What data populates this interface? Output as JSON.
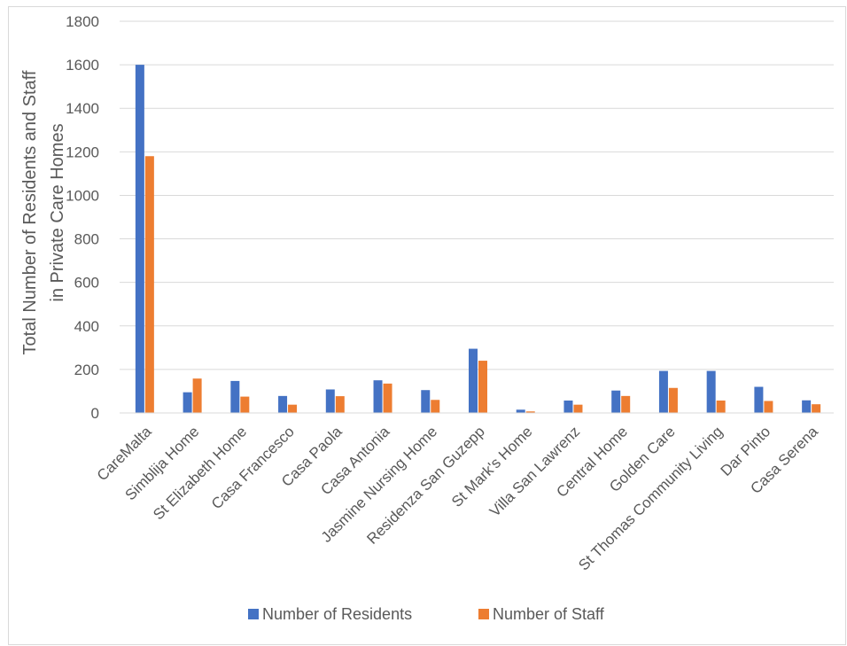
{
  "chart_data": {
    "type": "bar",
    "title": "",
    "xlabel": "",
    "ylabel_lines": [
      "Total Number of Residents and Staff",
      "in Private Care Homes"
    ],
    "ylim": [
      0,
      1800
    ],
    "yticks": [
      0,
      200,
      400,
      600,
      800,
      1000,
      1200,
      1400,
      1600,
      1800
    ],
    "grid": true,
    "legend_position": "bottom",
    "categories": [
      "CareMalta",
      "Simblija Home",
      "St Elizabeth Home",
      "Casa Francesco",
      "Casa Paola",
      "Casa Antonia",
      "Jasmine Nursing Home",
      "Residenza San Guzepp",
      "St Mark's Home",
      "Villa San Lawrenz",
      "Central Home",
      "Golden Care",
      "St Thomas Community Living",
      "Dar Pinto",
      "Casa Serena"
    ],
    "series": [
      {
        "name": "Number of Residents",
        "color": "#4472c4",
        "values": [
          1600,
          95,
          147,
          78,
          108,
          150,
          105,
          295,
          15,
          57,
          103,
          193,
          193,
          120,
          58
        ]
      },
      {
        "name": "Number of Staff",
        "color": "#ed7d31",
        "values": [
          1180,
          158,
          75,
          38,
          77,
          135,
          60,
          240,
          7,
          38,
          78,
          115,
          57,
          55,
          40
        ]
      }
    ]
  }
}
